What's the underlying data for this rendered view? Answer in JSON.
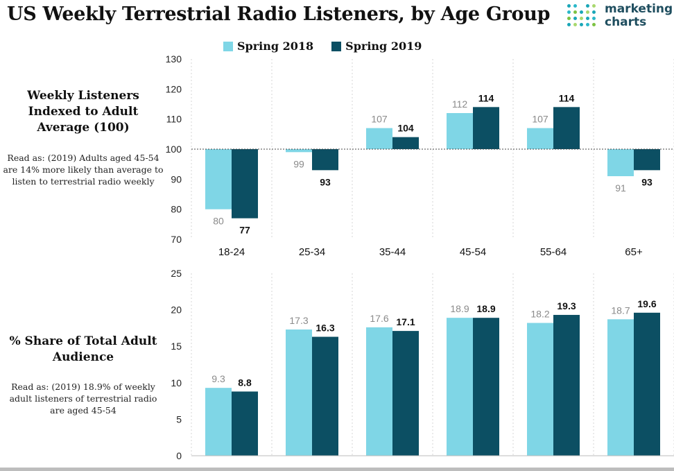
{
  "title": "US Weekly Terrestrial Radio Listeners, by Age Group",
  "brand": {
    "line1": "marketing",
    "line2": "charts"
  },
  "legend": [
    {
      "label": "Spring 2018",
      "color": "#7fd6e6"
    },
    {
      "label": "Spring 2019",
      "color": "#0c4f63"
    }
  ],
  "panels": [
    {
      "side_title": "Weekly Listeners Indexed to Adult Average (100)",
      "side_note": "Read as: (2019) Adults aged 45-54 are 14% more likely than average to listen to terrestrial radio weekly"
    },
    {
      "side_title": "% Share of Total Adult Audience",
      "side_note": "Read as: (2019) 18.9% of weekly adult listeners of terrestrial radio are aged 45-54"
    }
  ],
  "chart_data": [
    {
      "type": "bar",
      "title": "Weekly Listeners Indexed to Adult Average (100)",
      "categories": [
        "18-24",
        "25-34",
        "35-44",
        "45-54",
        "55-64",
        "65+"
      ],
      "series": [
        {
          "name": "Spring 2018",
          "values": [
            80,
            99,
            107,
            112,
            107,
            91
          ]
        },
        {
          "name": "Spring 2019",
          "values": [
            77,
            93,
            104,
            114,
            114,
            93
          ]
        }
      ],
      "baseline": 100,
      "ylim": [
        70,
        130
      ],
      "yticks": [
        70,
        80,
        90,
        100,
        110,
        120,
        130
      ],
      "grid": "vertical separators",
      "legend": "top"
    },
    {
      "type": "bar",
      "title": "% Share of Total Adult Audience",
      "categories": [
        "18-24",
        "25-34",
        "35-44",
        "45-54",
        "55-64",
        "65+"
      ],
      "series": [
        {
          "name": "Spring 2018",
          "values": [
            9.3,
            17.3,
            17.6,
            18.9,
            18.2,
            18.7
          ]
        },
        {
          "name": "Spring 2019",
          "values": [
            8.8,
            16.3,
            17.1,
            18.9,
            19.3,
            19.6
          ]
        }
      ],
      "baseline": 0,
      "ylim": [
        0,
        25
      ],
      "yticks": [
        0,
        5,
        10,
        15,
        20,
        25
      ],
      "grid": "vertical separators",
      "legend": "top"
    }
  ]
}
